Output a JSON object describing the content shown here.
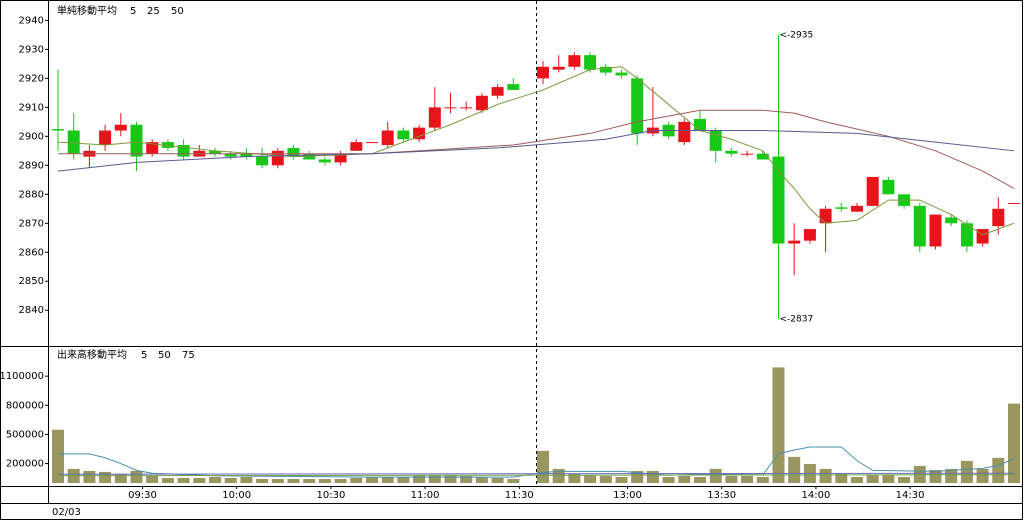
{
  "chart_data": [
    {
      "type": "candlestick",
      "title": "単純移動平均",
      "open": [
        2902.5,
        2902,
        2893,
        2897,
        2902,
        2904,
        2894,
        2898,
        2897,
        2893,
        2895,
        2894,
        2894,
        2893,
        2890,
        2896,
        2894,
        2892,
        2891,
        2895,
        2898,
        2897,
        2902,
        2899,
        2903,
        2910,
        2910,
        2909,
        2914,
        2918,
        2920,
        2923,
        2924,
        2928,
        2924,
        2922,
        2920,
        2901,
        2904,
        2898,
        2906,
        2902,
        2895,
        2894,
        2894,
        2893,
        2863,
        2864,
        2870,
        2875.5,
        2874,
        2876,
        2885,
        2880,
        2876,
        2862,
        2872,
        2870,
        2863,
        2869,
        2877
      ],
      "high": [
        2923,
        2908,
        2897,
        2904,
        2908,
        2905,
        2899,
        2899,
        2899,
        2897,
        2896,
        2895,
        2896,
        2896,
        2896,
        2897,
        2895,
        2893,
        2895,
        2899,
        2898,
        2905,
        2903,
        2904,
        2917,
        2915,
        2912,
        2915,
        2918,
        2920,
        2926,
        2928,
        2929,
        2929,
        2925,
        2923,
        2921,
        2917,
        2905,
        2906,
        2909,
        2903,
        2896,
        2895,
        2895,
        2935,
        2870,
        2868,
        2876,
        2877,
        2877,
        2886,
        2886,
        2880,
        2877,
        2873,
        2873,
        2871,
        2868,
        2879,
        2877
      ],
      "low": [
        2895,
        2892,
        2889,
        2895,
        2900,
        2888,
        2893,
        2895,
        2892,
        2893,
        2893,
        2892,
        2892,
        2889,
        2889,
        2892,
        2892,
        2890,
        2890,
        2895,
        2898,
        2896,
        2898,
        2898,
        2902,
        2908,
        2909,
        2908,
        2913,
        2916,
        2918,
        2922,
        2923,
        2922,
        2921,
        2920,
        2897,
        2900,
        2899,
        2897,
        2902,
        2891,
        2893,
        2893,
        2892,
        2837,
        2852,
        2863,
        2860,
        2874,
        2874,
        2876,
        2880,
        2875,
        2860,
        2861,
        2869,
        2860,
        2862,
        2866,
        2877
      ],
      "close": [
        2902,
        2894,
        2895,
        2902,
        2904,
        2893,
        2898,
        2896,
        2893,
        2895,
        2894,
        2893,
        2893,
        2890,
        2895,
        2893,
        2892,
        2891,
        2894,
        2898,
        2898,
        2902,
        2899,
        2903,
        2910,
        2910,
        2910,
        2914,
        2917,
        2916,
        2924,
        2924,
        2928,
        2923,
        2922,
        2921,
        2901,
        2903,
        2900,
        2905,
        2902,
        2895,
        2894,
        2894,
        2892,
        2863,
        2864,
        2868,
        2875,
        2875,
        2876,
        2886,
        2880,
        2876,
        2862,
        2873,
        2870,
        2862,
        2868,
        2875,
        2877
      ],
      "up_color": "#e8141c",
      "down_color": "#18c818",
      "series": [
        {
          "name": "5",
          "color": "#7a9a3a",
          "x": [
            0,
            3,
            5,
            10,
            15,
            20,
            22,
            25,
            28,
            30,
            33,
            35,
            36,
            38,
            40,
            42,
            44,
            45,
            46,
            47,
            48,
            50,
            52,
            54,
            56,
            58,
            60
          ],
          "values": [
            2898,
            2897,
            2898,
            2895,
            2893,
            2894,
            2898,
            2904,
            2911,
            2916,
            2923,
            2924,
            2920,
            2911,
            2902,
            2899,
            2895,
            2888,
            2882,
            2875,
            2870,
            2871,
            2878,
            2878,
            2873,
            2866,
            2870
          ]
        },
        {
          "name": "25",
          "color": "#a05a5a",
          "x": [
            0,
            20,
            29,
            33,
            36,
            40,
            44,
            46,
            48,
            52,
            55,
            58,
            60
          ],
          "values": [
            2894,
            2894,
            2897,
            2901,
            2905,
            2909,
            2909,
            2908,
            2905,
            2900,
            2895,
            2888,
            2882
          ]
        },
        {
          "name": "50",
          "color": "#5a5a94",
          "x": [
            0,
            5,
            12,
            20,
            28,
            34,
            37,
            44,
            50,
            55,
            60
          ],
          "values": [
            2888,
            2891,
            2893,
            2894,
            2896,
            2899,
            2902,
            2902,
            2901,
            2898,
            2895
          ]
        }
      ],
      "annotations": [
        {
          "text": "<-2935",
          "value": 2935,
          "color": "#e03030"
        },
        {
          "text": "<-2837",
          "value": 2837,
          "color": "#20b020"
        }
      ],
      "ylim": [
        2828,
        2946
      ],
      "yticks": [
        2840,
        2850,
        2860,
        2870,
        2880,
        2890,
        2900,
        2910,
        2920,
        2930,
        2940
      ]
    },
    {
      "type": "bar",
      "title": "出来高移動平均",
      "categories": [
        null,
        null,
        null,
        null,
        null,
        "09:30",
        null,
        null,
        null,
        null,
        null,
        "10:00",
        null,
        null,
        null,
        null,
        null,
        "10:30",
        null,
        null,
        null,
        null,
        null,
        "11:00",
        null,
        null,
        null,
        null,
        null,
        "11:30",
        null,
        null,
        null,
        null,
        null,
        "13:00",
        null,
        null,
        null,
        null,
        null,
        "13:30",
        null,
        null,
        null,
        null,
        null,
        "14:00",
        null,
        null,
        null,
        null,
        null,
        "14:30",
        null,
        null,
        null,
        null,
        null,
        null,
        null
      ],
      "values": [
        548000,
        145000,
        124000,
        114000,
        93000,
        124000,
        72000,
        52000,
        52000,
        52000,
        62000,
        52000,
        62000,
        41000,
        41000,
        41000,
        41000,
        41000,
        41000,
        52000,
        62000,
        62000,
        62000,
        83000,
        83000,
        83000,
        72000,
        62000,
        52000,
        41000,
        331000,
        145000,
        93000,
        83000,
        72000,
        62000,
        124000,
        124000,
        62000,
        72000,
        62000,
        145000,
        72000,
        72000,
        62000,
        1190000,
        269000,
        196000,
        145000,
        93000,
        62000,
        83000,
        83000,
        62000,
        176000,
        134000,
        145000,
        228000,
        145000,
        259000,
        817000
      ],
      "color": "#9a9660",
      "series": [
        {
          "name": "5",
          "color": "#4a90a8",
          "x": [
            0,
            2,
            3,
            4,
            5,
            6,
            10,
            20,
            29,
            30,
            31,
            35,
            38,
            40,
            44,
            45,
            46,
            47,
            48,
            49,
            50,
            51,
            55,
            58,
            59,
            60
          ],
          "values": [
            300000,
            300000,
            260000,
            200000,
            130000,
            100000,
            75000,
            60000,
            60000,
            110000,
            120000,
            120000,
            80000,
            90000,
            85000,
            300000,
            340000,
            370000,
            370000,
            370000,
            230000,
            130000,
            120000,
            150000,
            180000,
            250000
          ]
        },
        {
          "name": "50",
          "color": "#6a6ab0",
          "x": [
            0,
            60
          ],
          "values": [
            90000,
            100000
          ]
        },
        {
          "name": "75",
          "color": "#70a050",
          "x": [
            0,
            60
          ],
          "values": [
            75000,
            85000
          ]
        }
      ],
      "date": "02/03",
      "ylim": [
        0,
        1400000
      ],
      "yticks": [
        200000,
        500000,
        800000,
        1100000
      ]
    }
  ]
}
